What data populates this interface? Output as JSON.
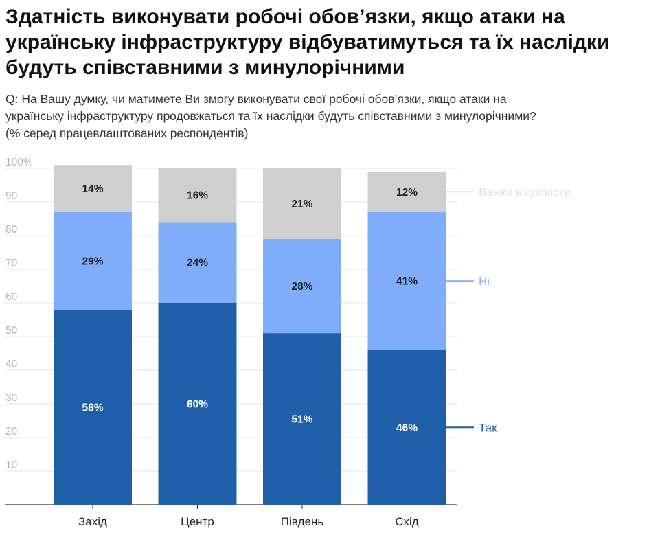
{
  "title": "Здатність виконувати робочі обов’язки, якщо атаки на українську інфраструктуру відбуватимуться та їх наслідки будуть співставними з минулорічними",
  "subtitle_lines": [
    "Q: На Вашу думку, чи матимете Ви змогу виконувати свої робочі обов’язки, якщо атаки на",
    "українську інфраструктуру продовжаться та їх наслідки будуть співставними з минулорічними?",
    "(% серед працевлаштованих респондентів)"
  ],
  "chart_data": {
    "type": "bar",
    "stacked": true,
    "categories": [
      "Захід",
      "Центр",
      "Південь",
      "Схід"
    ],
    "series": [
      {
        "name": "Так",
        "values": [
          58,
          60,
          51,
          46
        ],
        "labels": [
          "58%",
          "60%",
          "51%",
          "46%"
        ],
        "color": "#1f5fa9",
        "label_color": "#ffffff"
      },
      {
        "name": "Ні",
        "values": [
          29,
          24,
          28,
          41
        ],
        "labels": [
          "29%",
          "24%",
          "28%",
          "41%"
        ],
        "color": "#7fadfb",
        "label_color": "#222222"
      },
      {
        "name": "Важко відповісти",
        "values": [
          14,
          16,
          21,
          12
        ],
        "labels": [
          "14%",
          "16%",
          "21%",
          "12%"
        ],
        "color": "#cfcfcf",
        "label_color": "#222222"
      }
    ],
    "ylim": [
      0,
      100
    ],
    "yticks": [
      10,
      20,
      30,
      40,
      50,
      60,
      70,
      80,
      90,
      100
    ],
    "ytick_labels": [
      "10",
      "20",
      "30",
      "40",
      "50",
      "60",
      "70",
      "80",
      "90",
      "100%"
    ],
    "grid": true,
    "legend": "right, inline labels",
    "legend_colors": [
      "#1f5fa9",
      "#8ab4f8",
      "#e3e3e3"
    ],
    "xlabel": "",
    "ylabel": ""
  }
}
